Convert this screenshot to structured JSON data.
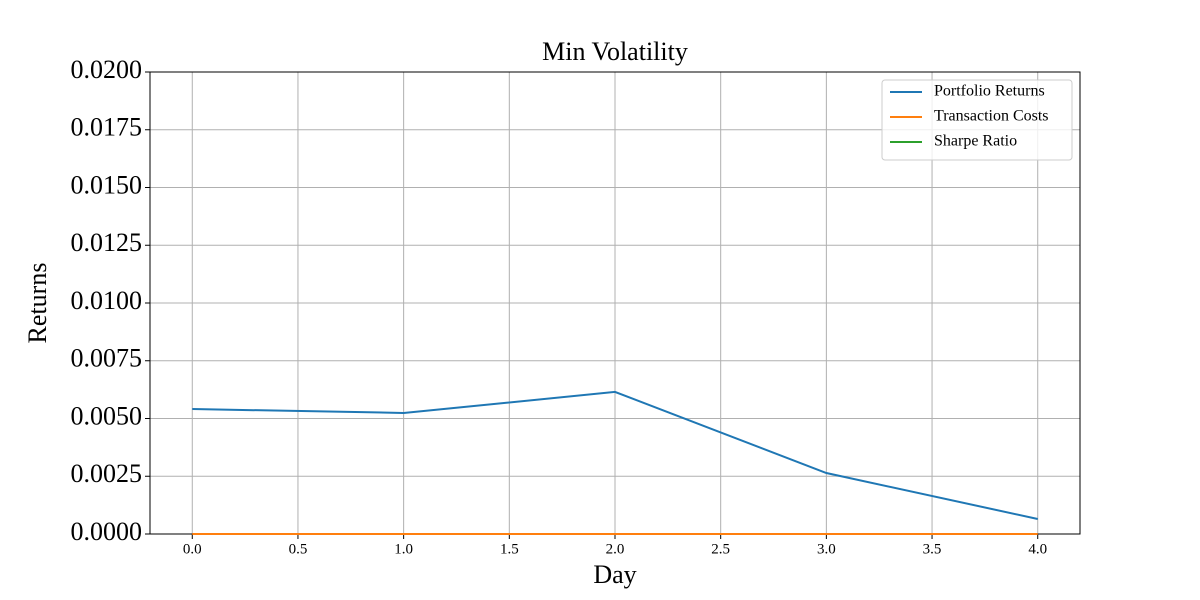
{
  "chart_data": {
    "type": "line",
    "title": "Min Volatility",
    "xlabel": "Day",
    "ylabel": "Returns",
    "x": [
      0,
      1,
      2,
      3,
      4
    ],
    "series": [
      {
        "name": "Portfolio Returns",
        "color": "#1f77b4",
        "values": [
          0.00541,
          0.00524,
          0.00615,
          0.00264,
          0.00065
        ]
      },
      {
        "name": "Transaction Costs",
        "color": "#ff7f0e",
        "values": [
          0,
          0,
          0,
          0,
          0
        ]
      },
      {
        "name": "Sharpe Ratio",
        "color": "#2ca02c",
        "values": [
          null,
          null,
          null,
          null,
          null
        ]
      }
    ],
    "xlim": [
      -0.2,
      4.2
    ],
    "xticks": [
      {
        "value": 0,
        "label": "0.0"
      },
      {
        "value": 0.5,
        "label": "0.5"
      },
      {
        "value": 1,
        "label": "1.0"
      },
      {
        "value": 1.5,
        "label": "1.5"
      },
      {
        "value": 2,
        "label": "2.0"
      },
      {
        "value": 2.5,
        "label": "2.5"
      },
      {
        "value": 3,
        "label": "3.0"
      },
      {
        "value": 3.5,
        "label": "3.5"
      },
      {
        "value": 4,
        "label": "4.0"
      }
    ],
    "ylim": [
      0,
      0.02
    ],
    "yticks": [
      {
        "value": 0,
        "label": "0.0000"
      },
      {
        "value": 0.0025,
        "label": "0.0025"
      },
      {
        "value": 0.005,
        "label": "0.0050"
      },
      {
        "value": 0.0075,
        "label": "0.0075"
      },
      {
        "value": 0.01,
        "label": "0.0100"
      },
      {
        "value": 0.0125,
        "label": "0.0125"
      },
      {
        "value": 0.015,
        "label": "0.0150"
      },
      {
        "value": 0.0175,
        "label": "0.0175"
      },
      {
        "value": 0.02,
        "label": "0.0200"
      }
    ],
    "grid": true,
    "legend": "upper right"
  }
}
